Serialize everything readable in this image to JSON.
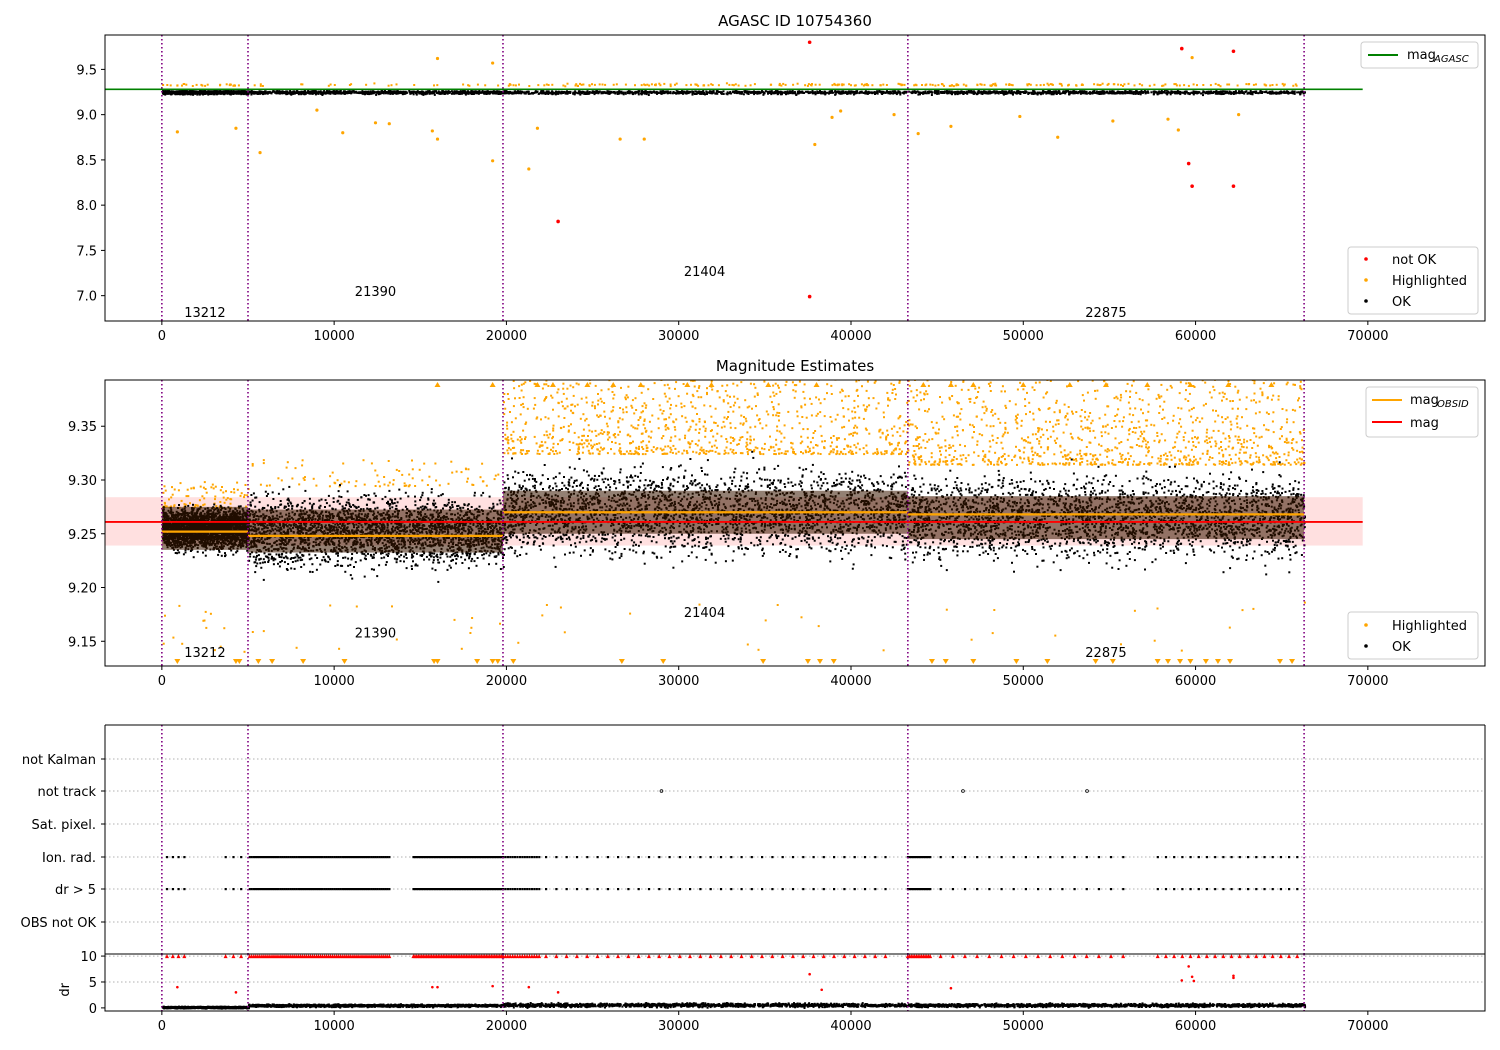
{
  "chart_data": [
    {
      "type": "scatter",
      "title": "AGASC ID 10754360",
      "xlim": [
        -3300,
        76800
      ],
      "ylim": [
        6.72,
        9.88
      ],
      "xticks": [
        0,
        10000,
        20000,
        30000,
        40000,
        50000,
        60000,
        70000
      ],
      "yticks": [
        7.0,
        7.5,
        8.0,
        8.5,
        9.0,
        9.5
      ],
      "xtick_labels": [
        "0",
        "10000",
        "20000",
        "30000",
        "40000",
        "50000",
        "60000",
        "70000"
      ],
      "ytick_labels": [
        "7.0",
        "7.5",
        "8.0",
        "8.5",
        "9.0",
        "9.5"
      ],
      "lines": [
        {
          "name": "mag_AGASC_label",
          "color": "#008000",
          "x": [
            -3300,
            69700
          ],
          "y": [
            9.28,
            9.28
          ]
        }
      ],
      "vlines": [
        0,
        5000,
        19800,
        43300,
        66300
      ],
      "obsid_labels": [
        {
          "text": "13212",
          "x": 2500,
          "y": 6.82
        },
        {
          "text": "21390",
          "x": 12400,
          "y": 7.05
        },
        {
          "text": "21404",
          "x": 31500,
          "y": 7.27
        },
        {
          "text": "22875",
          "x": 54800,
          "y": 6.82
        }
      ],
      "series": [
        {
          "name": "not OK",
          "color": "#ff0000",
          "x": [
            23000,
            37600,
            37600,
            59200,
            59600,
            59800,
            62200,
            62200
          ],
          "y": [
            7.82,
            6.99,
            9.8,
            9.73,
            8.46,
            8.21,
            8.21,
            9.7
          ]
        },
        {
          "name": "Highlighted",
          "color": "#ffa500",
          "x": [
            900,
            4300,
            5700,
            9000,
            10500,
            12400,
            13200,
            15700,
            16000,
            19200,
            21300,
            21800,
            26600,
            28000,
            37900,
            38900,
            39400,
            42500,
            43900,
            45800,
            49800,
            52000,
            55200,
            58400,
            59000,
            59800,
            62500,
            16000,
            19200
          ],
          "y": [
            8.81,
            8.85,
            8.58,
            9.05,
            8.8,
            8.91,
            8.9,
            8.82,
            8.73,
            8.49,
            8.4,
            8.85,
            8.73,
            8.73,
            8.67,
            8.97,
            9.04,
            9.0,
            8.79,
            8.87,
            8.98,
            8.75,
            8.93,
            8.95,
            8.83,
            9.63,
            9.0,
            9.62,
            9.57
          ]
        },
        {
          "name": "OK",
          "color": "#000000",
          "bands": [
            {
              "x0": 0,
              "x1": 5000,
              "y0": 9.2,
              "y1": 9.31
            },
            {
              "x0": 5000,
              "x1": 19800,
              "y0": 9.19,
              "y1": 9.31
            },
            {
              "x0": 19800,
              "x1": 43300,
              "y0": 9.19,
              "y1": 9.33
            },
            {
              "x0": 43300,
              "x1": 66300,
              "y0": 9.19,
              "y1": 9.32
            }
          ]
        }
      ],
      "legend_upper": [
        "mag_AGASC_label"
      ],
      "legend_lower": [
        "not OK",
        "Highlighted",
        "OK"
      ]
    },
    {
      "type": "scatter",
      "title": "Magnitude Estimates",
      "xlim": [
        -3300,
        76800
      ],
      "ylim": [
        9.127,
        9.393
      ],
      "xticks": [
        0,
        10000,
        20000,
        30000,
        40000,
        50000,
        60000,
        70000
      ],
      "yticks": [
        9.15,
        9.2,
        9.25,
        9.3,
        9.35
      ],
      "xtick_labels": [
        "0",
        "10000",
        "20000",
        "30000",
        "40000",
        "50000",
        "60000",
        "70000"
      ],
      "ytick_labels": [
        "9.15",
        "9.20",
        "9.25",
        "9.30",
        "9.35"
      ],
      "mag_band": {
        "x": [
          -3300,
          69700
        ],
        "y0": 9.239,
        "y1": 9.284,
        "mean": 9.261
      },
      "mag_obsid": [
        {
          "x0": 0,
          "x1": 5000,
          "y": 9.252
        },
        {
          "x0": 5000,
          "x1": 19800,
          "y": 9.248
        },
        {
          "x0": 19800,
          "x1": 43300,
          "y": 9.27
        },
        {
          "x0": 43300,
          "x1": 66300,
          "y": 9.268
        }
      ],
      "vlines": [
        0,
        5000,
        19800,
        43300,
        66300
      ],
      "obsid_labels": [
        {
          "text": "13212",
          "x": 2500,
          "y": 9.14
        },
        {
          "text": "21390",
          "x": 12400,
          "y": 9.158
        },
        {
          "text": "21404",
          "x": 31500,
          "y": 9.177
        },
        {
          "text": "22875",
          "x": 54800,
          "y": 9.14
        }
      ],
      "series": [
        {
          "name": "Highlighted",
          "color": "#ffa500"
        },
        {
          "name": "OK",
          "color": "#000000",
          "bands": [
            {
              "x0": 0,
              "x1": 5000,
              "y0": 9.225,
              "y1": 9.285
            },
            {
              "x0": 5000,
              "x1": 19800,
              "y0": 9.2,
              "y1": 9.305
            },
            {
              "x0": 19800,
              "x1": 43300,
              "y0": 9.205,
              "y1": 9.335
            },
            {
              "x0": 43300,
              "x1": 66300,
              "y0": 9.205,
              "y1": 9.325
            }
          ]
        }
      ],
      "legend_upper": [
        "mag_OBSID_label",
        "mag"
      ],
      "legend_lower": [
        "Highlighted",
        "OK"
      ]
    },
    {
      "type": "scatter",
      "xlim": [
        -3300,
        76800
      ],
      "categories": [
        "not Kalman",
        "not track",
        "Sat. pixel.",
        "Ion. rad.",
        "dr > 5",
        "OBS not OK"
      ],
      "vlines": [
        0,
        5000,
        19800,
        43300,
        66300
      ],
      "not_track_x": [
        29000,
        46500,
        53700
      ],
      "flag_segments": [
        {
          "x0": 300,
          "x1": 1300,
          "n": 4
        },
        {
          "x0": 3700,
          "x1": 4600,
          "n": 3
        },
        {
          "x0": 5100,
          "x1": 13200,
          "n": 70
        },
        {
          "x0": 14600,
          "x1": 19800,
          "n": 55
        },
        {
          "x0": 19800,
          "x1": 21900,
          "n": 16
        },
        {
          "x0": 22300,
          "x1": 42000,
          "n": 34
        },
        {
          "x0": 43300,
          "x1": 44600,
          "n": 14
        },
        {
          "x0": 45200,
          "x1": 55800,
          "n": 16
        },
        {
          "x0": 57800,
          "x1": 65900,
          "n": 18
        }
      ]
    },
    {
      "type": "scatter",
      "ylabel": "dr",
      "xlim": [
        -3300,
        76800
      ],
      "ylim": [
        -0.6,
        10.4
      ],
      "xticks": [
        0,
        10000,
        20000,
        30000,
        40000,
        50000,
        60000,
        70000
      ],
      "yticks": [
        0,
        5,
        10
      ],
      "xtick_labels": [
        "0",
        "10000",
        "20000",
        "30000",
        "40000",
        "50000",
        "60000",
        "70000"
      ],
      "ytick_labels": [
        "0",
        "5",
        "10"
      ],
      "vlines": [
        0,
        5000,
        19800,
        43300,
        66300
      ],
      "series": [
        {
          "name": "dr > 5",
          "color": "#ff0000",
          "y": 10
        },
        {
          "name": "dr red",
          "color": "#ff0000",
          "x": [
            900,
            4300,
            15700,
            16000,
            19200,
            21300,
            23000,
            37600,
            38300,
            45800,
            59200,
            59600,
            59800,
            59900,
            62200,
            62200
          ],
          "y": [
            4.0,
            3.0,
            4.0,
            4.0,
            4.2,
            4.0,
            3.0,
            6.5,
            3.5,
            3.8,
            5.3,
            8.0,
            6.0,
            5.2,
            5.8,
            6.2
          ]
        },
        {
          "name": "OK",
          "color": "#000000",
          "bands": [
            {
              "x0": 0,
              "x1": 5000,
              "y0": 0.0,
              "y1": 0.5
            },
            {
              "x0": 5000,
              "x1": 19800,
              "y0": 0.2,
              "y1": 1.0
            },
            {
              "x0": 19800,
              "x1": 43300,
              "y0": 0.1,
              "y1": 1.3
            },
            {
              "x0": 43300,
              "x1": 66300,
              "y0": 0.1,
              "y1": 1.2
            }
          ]
        }
      ]
    }
  ],
  "legend_labels": {
    "mag_AGASC_label": "mag",
    "mag_AGASC_sub": "AGASC",
    "mag_OBSID_label": "mag",
    "mag_OBSID_sub": "OBSID",
    "mag": "mag",
    "not OK": "not OK",
    "Highlighted": "Highlighted",
    "OK": "OK"
  }
}
